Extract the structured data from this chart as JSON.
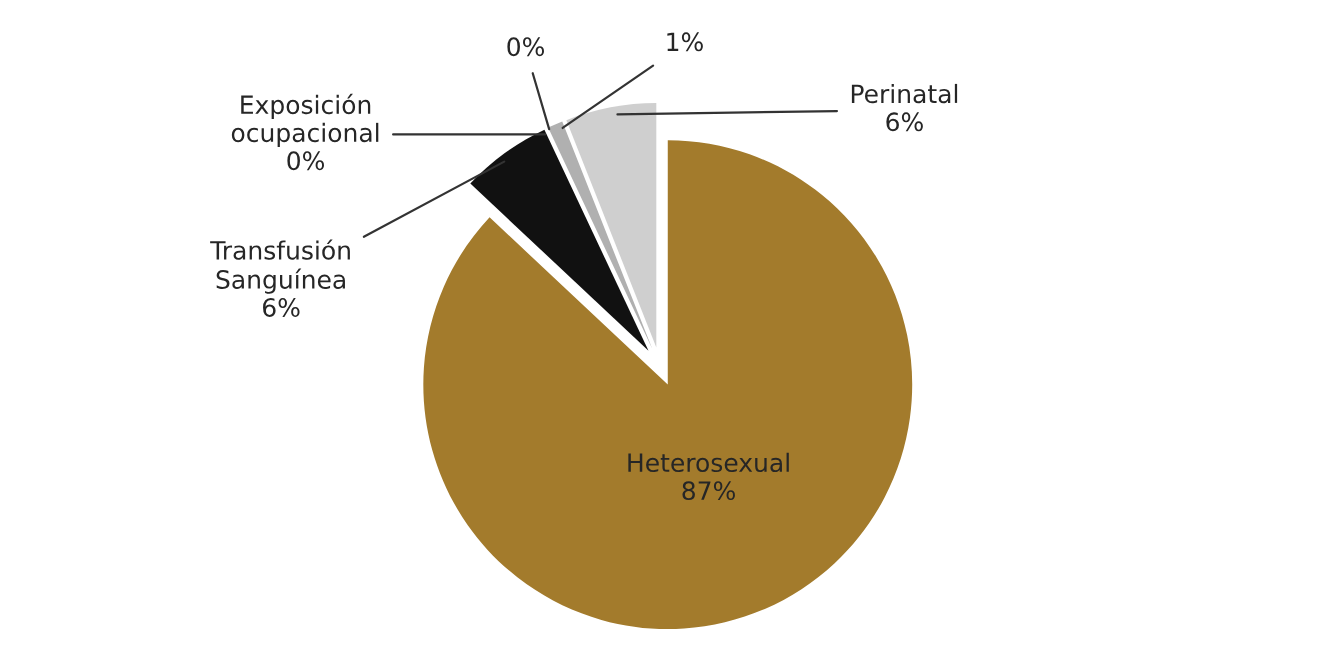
{
  "chart_data": {
    "type": "pie",
    "categories": [
      "Heterosexual",
      "Transfusión\nSanguínea",
      "Exposición\nocupacional",
      null,
      null,
      "Perinatal"
    ],
    "values": [
      87,
      6,
      0,
      0,
      1,
      6
    ],
    "value_labels": [
      "87%",
      "6%",
      "0%",
      "0%",
      "1%",
      "6%"
    ],
    "colors": [
      "#a37b2c",
      "#111111",
      "#7a7a7a",
      "#9a9a9a",
      "#b0b0b0",
      "#cfcfcf"
    ]
  }
}
